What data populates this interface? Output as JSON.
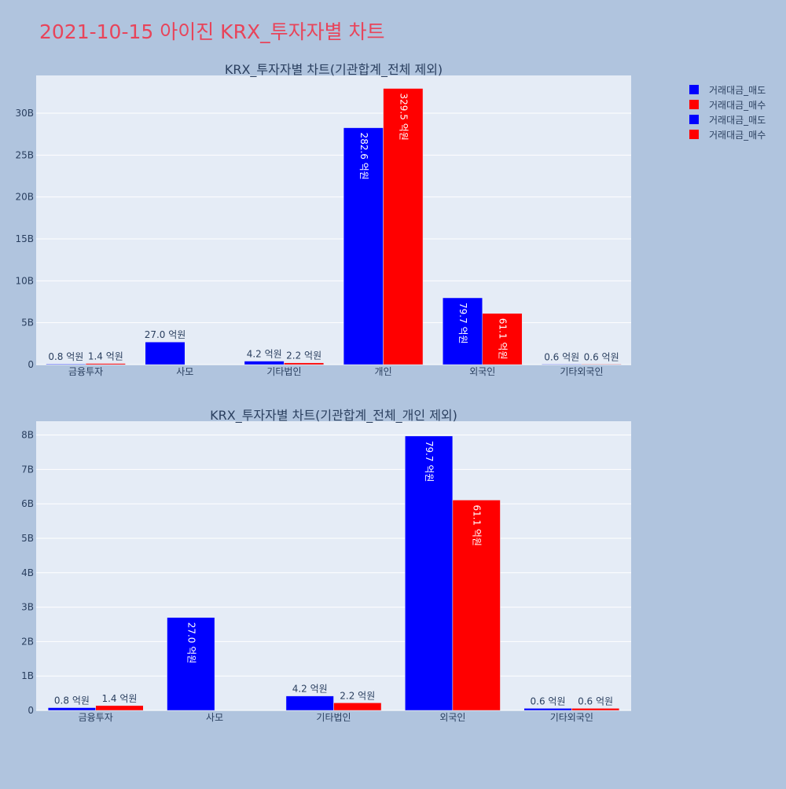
{
  "page": {
    "title": "2021-10-15 아이진 KRX_투자자별 차트",
    "title_color": "#e8445a",
    "background": "#b0c4de",
    "plot_background": "#e5ecf6"
  },
  "legend": {
    "placement": "top-right",
    "items": [
      {
        "label": "거래대금_매도",
        "color": "#0000ff"
      },
      {
        "label": "거래대금_매수",
        "color": "#ff0000"
      },
      {
        "label": "거래대금_매도",
        "color": "#0000ff"
      },
      {
        "label": "거래대금_매수",
        "color": "#ff0000"
      }
    ]
  },
  "chart_data": [
    {
      "type": "bar",
      "title": "KRX_투자자별 차트(기관합계_전체 제외)",
      "categories": [
        "금융투자",
        "사모",
        "기타법인",
        "개인",
        "외국인",
        "기타외국인"
      ],
      "ylim": [
        0,
        34500000000
      ],
      "yticks": [
        0,
        5000000000,
        10000000000,
        15000000000,
        20000000000,
        25000000000,
        30000000000
      ],
      "ytick_labels": [
        "0",
        "5B",
        "10B",
        "15B",
        "20B",
        "25B",
        "30B"
      ],
      "grid": true,
      "series": [
        {
          "name": "거래대금_매도",
          "color": "#0000ff",
          "values": [
            80000000,
            2700000000,
            420000000,
            28260000000,
            7970000000,
            60000000
          ],
          "labels": [
            "0.8 억원",
            "27.0 억원",
            "4.2 억원",
            "282.6 억원",
            "79.7 억원",
            "0.6 억원"
          ]
        },
        {
          "name": "거래대금_매수",
          "color": "#ff0000",
          "values": [
            140000000,
            0,
            220000000,
            32950000000,
            6110000000,
            60000000
          ],
          "labels": [
            "1.4 억원",
            "",
            "2.2 억원",
            "329.5 억원",
            "61.1 억원",
            "0.6 억원"
          ]
        }
      ]
    },
    {
      "type": "bar",
      "title": "KRX_투자자별 차트(기관합계_전체_개인 제외)",
      "categories": [
        "금융투자",
        "사모",
        "기타법인",
        "외국인",
        "기타외국인"
      ],
      "ylim": [
        0,
        8400000000
      ],
      "yticks": [
        0,
        1000000000,
        2000000000,
        3000000000,
        4000000000,
        5000000000,
        6000000000,
        7000000000,
        8000000000
      ],
      "ytick_labels": [
        "0",
        "1B",
        "2B",
        "3B",
        "4B",
        "5B",
        "6B",
        "7B",
        "8B"
      ],
      "grid": true,
      "series": [
        {
          "name": "거래대금_매도",
          "color": "#0000ff",
          "values": [
            80000000,
            2700000000,
            420000000,
            7970000000,
            60000000
          ],
          "labels": [
            "0.8 억원",
            "27.0 억원",
            "4.2 억원",
            "79.7 억원",
            "0.6 억원"
          ]
        },
        {
          "name": "거래대금_매수",
          "color": "#ff0000",
          "values": [
            140000000,
            0,
            220000000,
            6110000000,
            60000000
          ],
          "labels": [
            "1.4 억원",
            "",
            "2.2 억원",
            "61.1 억원",
            "0.6 억원"
          ]
        }
      ]
    }
  ]
}
